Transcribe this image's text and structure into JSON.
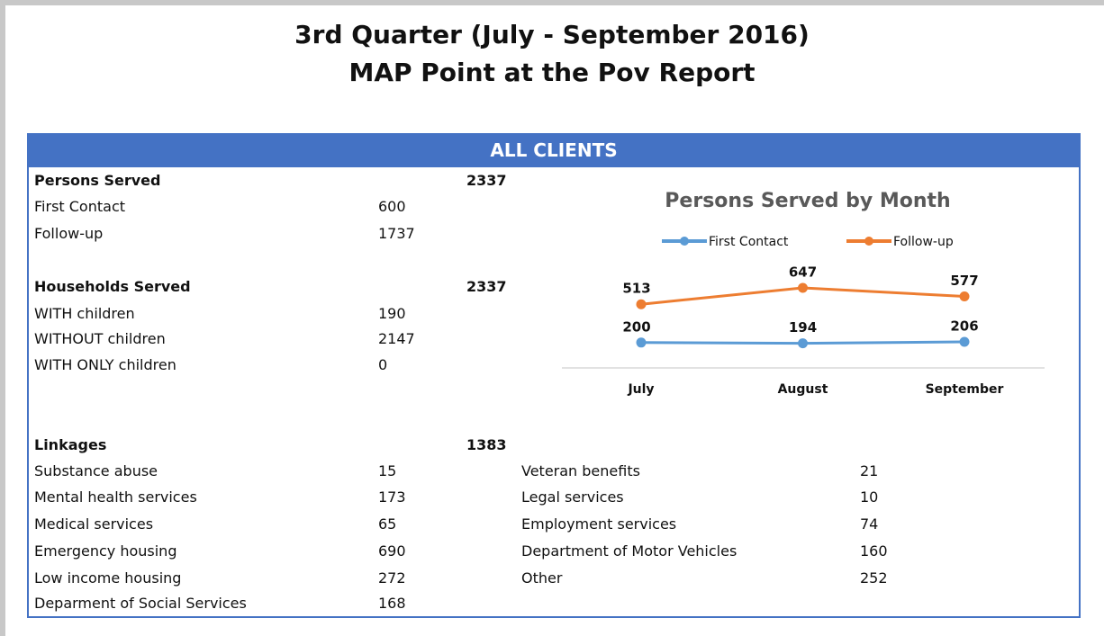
{
  "header": {
    "title": "3rd Quarter (July - September 2016)",
    "subtitle": "MAP Point at the Pov Report"
  },
  "banner": "ALL CLIENTS",
  "persons": {
    "label": "Persons Served",
    "total": 2337,
    "rows": [
      {
        "label": "First Contact",
        "value": 600
      },
      {
        "label": "Follow-up",
        "value": 1737
      }
    ]
  },
  "households": {
    "label": "Households Served",
    "total": 2337,
    "rows": [
      {
        "label": "WITH children",
        "value": 190
      },
      {
        "label": "WITHOUT children",
        "value": 2147
      },
      {
        "label": "WITH ONLY children",
        "value": 0
      }
    ]
  },
  "linkages": {
    "label": "Linkages",
    "total": 1383,
    "rows": [
      {
        "label": "Substance abuse",
        "value": 15
      },
      {
        "label": "Mental health services",
        "value": 173
      },
      {
        "label": "Medical services",
        "value": 65
      },
      {
        "label": "Emergency housing",
        "value": 690
      },
      {
        "label": "Low income housing",
        "value": 272
      },
      {
        "label": "Deparment of Social Services",
        "value": 168
      }
    ],
    "rows2": [
      {
        "label": "Veteran benefits",
        "value": 21
      },
      {
        "label": "Legal services",
        "value": 10
      },
      {
        "label": "Employment services",
        "value": 74
      },
      {
        "label": "Department of Motor Vehicles",
        "value": 160
      },
      {
        "label": "Other",
        "value": 252
      }
    ]
  },
  "chart_data": {
    "type": "line",
    "title": "Persons Served by Month",
    "categories": [
      "July",
      "August",
      "September"
    ],
    "series": [
      {
        "name": "First Contact",
        "color": "#5b9bd5",
        "values": [
          200,
          194,
          206
        ]
      },
      {
        "name": "Follow-up",
        "color": "#ed7d31",
        "values": [
          513,
          647,
          577
        ]
      }
    ],
    "ylim": [
      0,
      1000
    ]
  }
}
